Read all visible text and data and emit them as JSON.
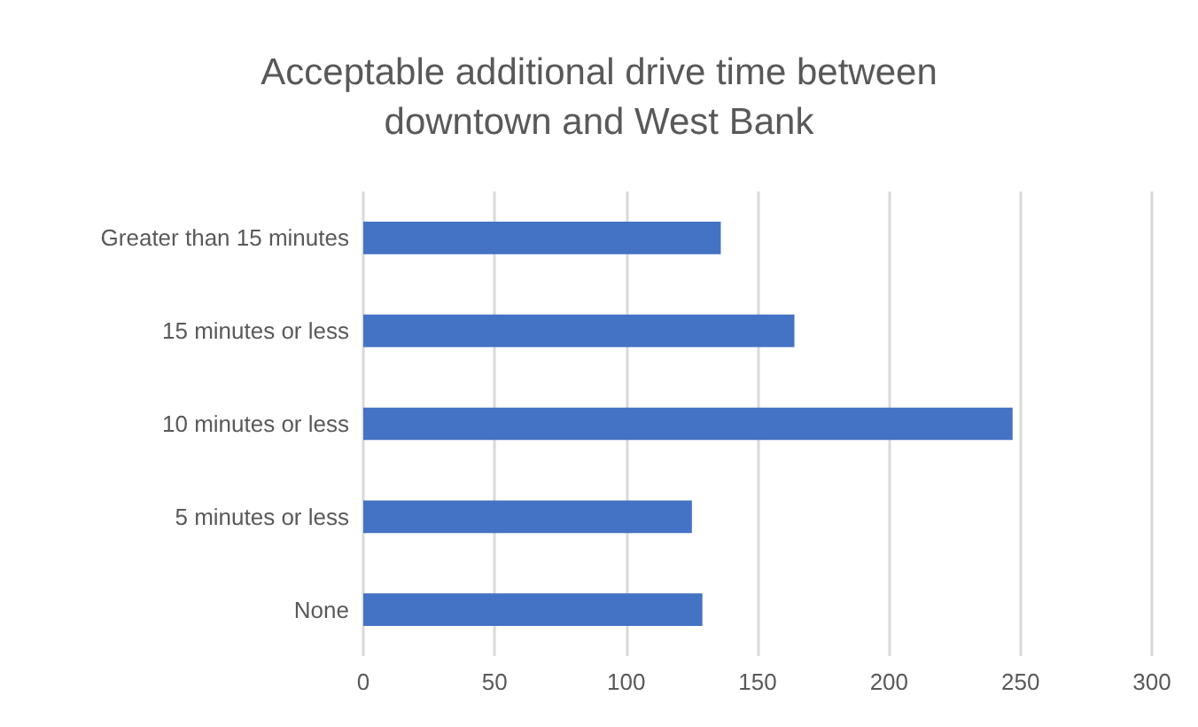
{
  "chart_data": {
    "type": "bar",
    "orientation": "horizontal",
    "title": "Acceptable additional drive time between\ndowntown and West Bank",
    "categories": [
      "Greater than 15 minutes",
      "15 minutes or less",
      "10 minutes or less",
      "5 minutes or less",
      "None"
    ],
    "values": [
      136,
      164,
      247,
      125,
      129
    ],
    "color": "#4472c4",
    "xlim": [
      0,
      300
    ],
    "xticks": [
      0,
      50,
      100,
      150,
      200,
      250,
      300
    ],
    "grid": "x"
  }
}
